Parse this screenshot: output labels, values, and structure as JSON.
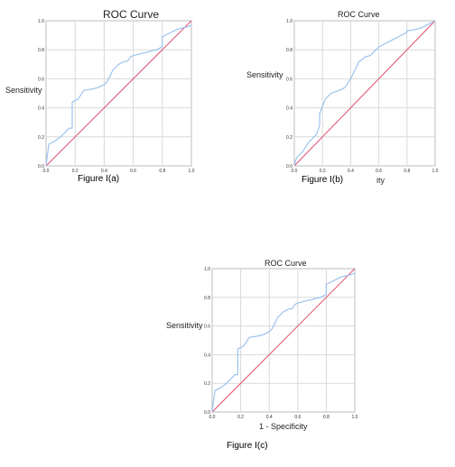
{
  "colors": {
    "roc_line": "#9cc3ee",
    "reference_line": "#e0506f",
    "grid": "#d9d9d9",
    "frame": "#bdbdbd"
  },
  "chart_data": [
    {
      "type": "line",
      "title": "ROC Curve",
      "ylabel": "Sensitivity",
      "xlabel": "",
      "xlim": [
        0,
        1
      ],
      "ylim": [
        0,
        1
      ],
      "x_ticks": [
        "0.0",
        "0.2",
        "0.4",
        "0.6",
        "0.8",
        "1.0"
      ],
      "y_ticks": [
        "0.0",
        "0.2",
        "0.4",
        "0.6",
        "0.8",
        "1.0"
      ],
      "grid": true,
      "caption": "Figure I(a)",
      "series": [
        {
          "x": [
            0,
            0.01,
            0.02,
            0.04,
            0.06,
            0.1,
            0.16,
            0.18,
            0.18,
            0.22,
            0.26,
            0.32,
            0.36,
            0.4,
            0.42,
            0.46,
            0.48,
            0.5,
            0.54,
            0.56,
            0.58,
            0.6,
            0.64,
            0.68,
            0.72,
            0.76,
            0.78,
            0.8,
            0.8,
            0.86,
            0.9,
            0.94,
            0.98,
            1.0
          ],
          "y": [
            0,
            0.08,
            0.15,
            0.16,
            0.17,
            0.2,
            0.26,
            0.26,
            0.44,
            0.46,
            0.52,
            0.53,
            0.54,
            0.56,
            0.58,
            0.66,
            0.68,
            0.7,
            0.72,
            0.72,
            0.75,
            0.76,
            0.77,
            0.78,
            0.79,
            0.8,
            0.81,
            0.82,
            0.89,
            0.92,
            0.94,
            0.95,
            0.96,
            0.97
          ]
        },
        {
          "x": [
            0,
            1
          ],
          "y": [
            0,
            1
          ]
        }
      ]
    },
    {
      "type": "line",
      "title": "ROC Curve",
      "ylabel": "Sensitivity",
      "xlabel": "",
      "xlim": [
        0,
        1
      ],
      "ylim": [
        0,
        1
      ],
      "x_ticks": [
        "0.0",
        "0.2",
        "0.4",
        "0.6",
        "0.8",
        "1.0"
      ],
      "y_ticks": [
        "0.0",
        "0.2",
        "0.4",
        "0.6",
        "0.8",
        "1.0"
      ],
      "grid": true,
      "caption": "Figure I(b)",
      "extra_text": "ity",
      "series": [
        {
          "x": [
            0,
            0.01,
            0.02,
            0.04,
            0.06,
            0.1,
            0.16,
            0.18,
            0.18,
            0.22,
            0.26,
            0.32,
            0.36,
            0.4,
            0.42,
            0.46,
            0.48,
            0.5,
            0.54,
            0.56,
            0.58,
            0.6,
            0.64,
            0.68,
            0.72,
            0.76,
            0.78,
            0.8,
            0.8,
            0.86,
            0.9,
            0.94,
            0.98,
            1.0
          ],
          "y": [
            0,
            0.04,
            0.06,
            0.08,
            0.1,
            0.16,
            0.22,
            0.28,
            0.36,
            0.46,
            0.5,
            0.52,
            0.54,
            0.6,
            0.64,
            0.72,
            0.73,
            0.75,
            0.76,
            0.78,
            0.8,
            0.82,
            0.84,
            0.86,
            0.88,
            0.9,
            0.91,
            0.92,
            0.93,
            0.94,
            0.95,
            0.97,
            0.99,
            1.0
          ]
        },
        {
          "x": [
            0,
            1
          ],
          "y": [
            0,
            1
          ]
        }
      ]
    },
    {
      "type": "line",
      "title": "ROC Curve",
      "ylabel": "Sensitivity",
      "xlabel": "1 - Specificity",
      "xlim": [
        0,
        1
      ],
      "ylim": [
        0,
        1
      ],
      "x_ticks": [
        "0.0",
        "0.2",
        "0.4",
        "0.6",
        "0.8",
        "1.0"
      ],
      "y_ticks": [
        "0.0",
        "0.2",
        "0.4",
        "0.6",
        "0.8",
        "1.0"
      ],
      "grid": true,
      "caption": "Figure I(c)",
      "series": [
        {
          "x": [
            0,
            0.01,
            0.02,
            0.04,
            0.06,
            0.1,
            0.16,
            0.18,
            0.18,
            0.22,
            0.26,
            0.32,
            0.36,
            0.4,
            0.42,
            0.46,
            0.48,
            0.5,
            0.54,
            0.56,
            0.58,
            0.6,
            0.64,
            0.68,
            0.72,
            0.76,
            0.78,
            0.8,
            0.8,
            0.86,
            0.9,
            0.94,
            0.98,
            1.0
          ],
          "y": [
            0,
            0.08,
            0.15,
            0.16,
            0.17,
            0.2,
            0.26,
            0.26,
            0.44,
            0.46,
            0.52,
            0.53,
            0.54,
            0.56,
            0.58,
            0.66,
            0.68,
            0.7,
            0.72,
            0.72,
            0.75,
            0.76,
            0.77,
            0.78,
            0.79,
            0.8,
            0.81,
            0.82,
            0.89,
            0.92,
            0.94,
            0.95,
            0.96,
            0.97
          ]
        },
        {
          "x": [
            0,
            1
          ],
          "y": [
            0,
            1
          ]
        }
      ]
    }
  ]
}
